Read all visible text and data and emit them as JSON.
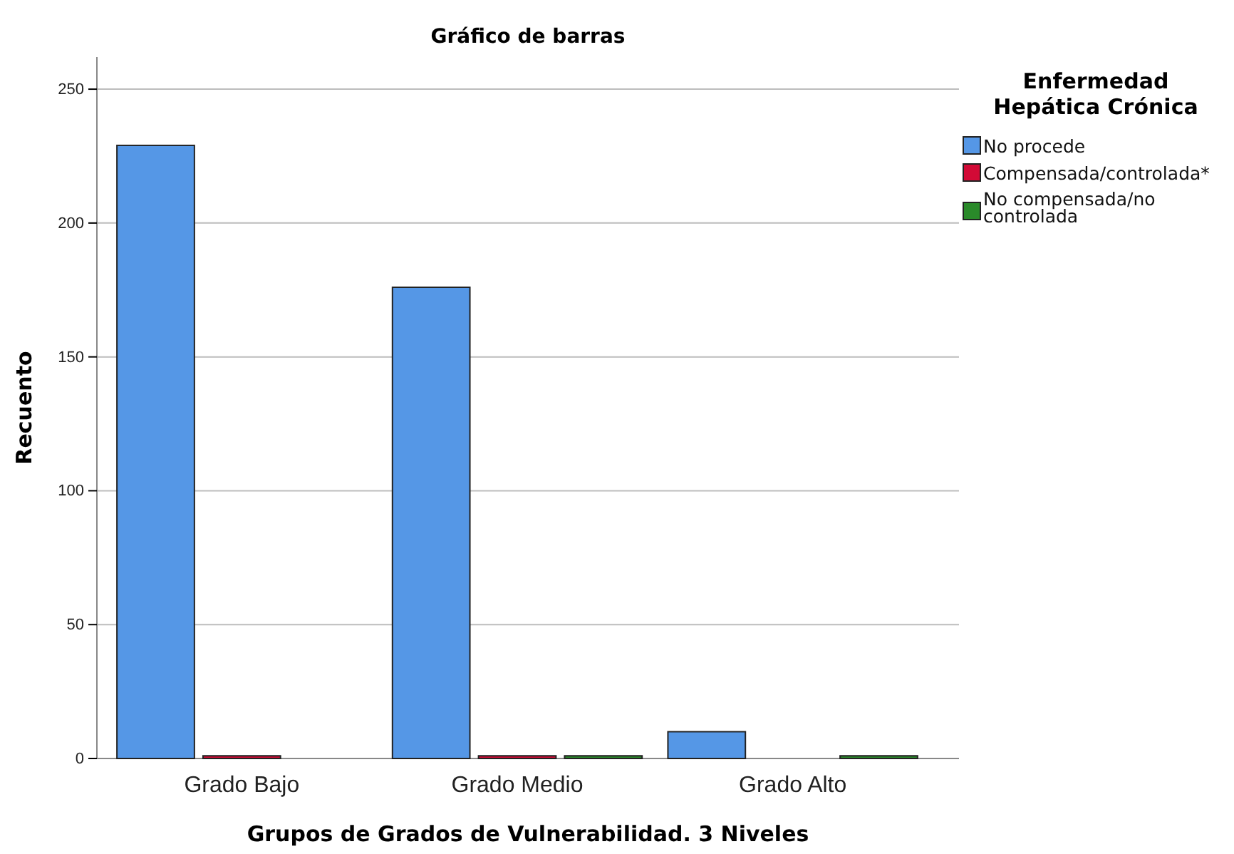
{
  "chart_data": {
    "type": "bar",
    "title": "Gráfico de barras",
    "xlabel": "Grupos de Grados de Vulnerabilidad. 3 Niveles",
    "ylabel": "Recuento",
    "legend_title": "Enfermedad Hepática Crónica",
    "categories": [
      "Grado Bajo",
      "Grado Medio",
      "Grado Alto"
    ],
    "series": [
      {
        "name": "No procede",
        "color": "#5597e6",
        "values": [
          229,
          176,
          10
        ]
      },
      {
        "name": "Compensada/controlada*",
        "color": "#d20a36",
        "values": [
          1,
          1,
          null
        ]
      },
      {
        "name": "No compensada/no controlada",
        "color": "#2a8a2a",
        "values": [
          null,
          1,
          1
        ]
      }
    ],
    "ylim": [
      0,
      262
    ],
    "yticks": [
      0,
      50,
      100,
      150,
      200,
      250
    ],
    "grid": "y",
    "legend": "top right"
  }
}
